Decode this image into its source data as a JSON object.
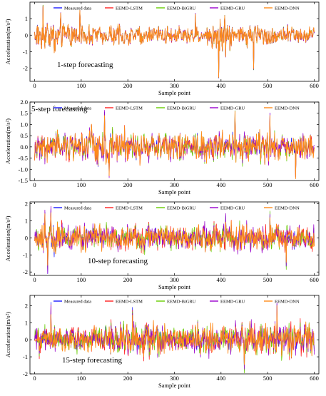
{
  "legend": [
    "Measured data",
    "EEMD-LSTM",
    "EEMD-BiGRU",
    "EEMD-GRU",
    "EEMD-DNN"
  ],
  "colors": {
    "measured": "#1a1aff",
    "lstm": "#ff2020",
    "bigru": "#66cc00",
    "gru": "#9900cc",
    "dnn": "#ff8c1a"
  },
  "chart_data": [
    {
      "type": "line",
      "annotation": "1-step forecasting",
      "xlabel": "Sample point",
      "ylabel": "Acceleration(m/s²)",
      "xlim": [
        -10,
        610
      ],
      "ylim": [
        -2.8,
        2.0
      ],
      "x_ticks": [
        0,
        100,
        200,
        300,
        400,
        500,
        600
      ],
      "y_ticks": [
        -2,
        -1,
        0,
        1
      ],
      "y_tick_labels": [
        "-2",
        "-1",
        "0",
        "1"
      ],
      "legend": "top",
      "series_names": [
        "Measured data",
        "EEMD-LSTM",
        "EEMD-BiGRU",
        "EEMD-GRU",
        "EEMD-DNN"
      ],
      "x_range": [
        0,
        600
      ],
      "amplitude_bands": [
        [
          0,
          100,
          0.95
        ],
        [
          100,
          200,
          0.75
        ],
        [
          200,
          300,
          0.65
        ],
        [
          300,
          380,
          0.6
        ],
        [
          380,
          420,
          1.4
        ],
        [
          420,
          520,
          0.8
        ],
        [
          520,
          600,
          0.6
        ]
      ],
      "notable_points": [
        {
          "x": 18,
          "y": 1.8
        },
        {
          "x": 97,
          "y": 1.5
        },
        {
          "x": 395,
          "y": -2.6
        },
        {
          "x": 470,
          "y": -2.1
        },
        {
          "x": 345,
          "y": 1.3
        }
      ]
    },
    {
      "type": "line",
      "annotation": "5-step forecasting",
      "xlabel": "Sample point",
      "ylabel": "Acceleration(m/s²)",
      "xlim": [
        -10,
        610
      ],
      "ylim": [
        -1.5,
        2.0
      ],
      "x_ticks": [
        0,
        100,
        200,
        300,
        400,
        500,
        600
      ],
      "y_ticks": [
        -1.5,
        -1.0,
        -0.5,
        0.0,
        0.5,
        1.0,
        1.5,
        2.0
      ],
      "y_tick_labels": [
        "-1.5",
        "-1.0",
        "-0.5",
        "0.0",
        "0.5",
        "1.0",
        "1.5",
        "2.0"
      ],
      "legend": "top",
      "series_names": [
        "Measured data",
        "EEMD-LSTM",
        "EEMD-BiGRU",
        "EEMD-GRU",
        "EEMD-DNN"
      ],
      "x_range": [
        0,
        600
      ],
      "amplitude_bands": [
        [
          0,
          100,
          0.75
        ],
        [
          100,
          200,
          0.85
        ],
        [
          200,
          300,
          0.65
        ],
        [
          300,
          420,
          0.7
        ],
        [
          420,
          520,
          0.8
        ],
        [
          520,
          600,
          0.6
        ]
      ],
      "notable_points": [
        {
          "x": 150,
          "y": 1.55
        },
        {
          "x": 430,
          "y": 1.6
        },
        {
          "x": 505,
          "y": 1.5
        },
        {
          "x": 160,
          "y": -1.3
        },
        {
          "x": 560,
          "y": -1.35
        }
      ]
    },
    {
      "type": "line",
      "annotation": "10-step forecasting",
      "xlabel": "Sample point",
      "ylabel": "Acceleration(m/s²)",
      "xlim": [
        -10,
        610
      ],
      "ylim": [
        -2.2,
        2.1
      ],
      "x_ticks": [
        0,
        100,
        200,
        300,
        400,
        500,
        600
      ],
      "y_ticks": [
        -2,
        -1,
        0,
        1,
        2
      ],
      "y_tick_labels": [
        "-2",
        "-1",
        "0",
        "1",
        "2"
      ],
      "legend": "top",
      "series_names": [
        "Measured data",
        "EEMD-LSTM",
        "EEMD-BiGRU",
        "EEMD-GRU",
        "EEMD-DNN"
      ],
      "x_range": [
        0,
        600
      ],
      "amplitude_bands": [
        [
          0,
          60,
          1.1
        ],
        [
          60,
          200,
          0.75
        ],
        [
          200,
          300,
          0.7
        ],
        [
          300,
          420,
          0.8
        ],
        [
          420,
          520,
          0.9
        ],
        [
          520,
          600,
          0.7
        ]
      ],
      "notable_points": [
        {
          "x": 28,
          "y": -2.1
        },
        {
          "x": 35,
          "y": 1.7
        },
        {
          "x": 410,
          "y": 1.3
        },
        {
          "x": 505,
          "y": 1.5
        },
        {
          "x": 540,
          "y": -1.7
        }
      ]
    },
    {
      "type": "line",
      "annotation": "15-step forecasting",
      "xlabel": "Sample point",
      "ylabel": "Acceleration(m/s²)",
      "xlim": [
        -10,
        610
      ],
      "ylim": [
        -2.0,
        2.6
      ],
      "x_ticks": [
        0,
        100,
        200,
        300,
        400,
        500,
        600
      ],
      "y_ticks": [
        -2,
        -1,
        0,
        1,
        2
      ],
      "y_tick_labels": [
        "-2",
        "-1",
        "0",
        "1",
        "2"
      ],
      "legend": "top",
      "series_names": [
        "Measured data",
        "EEMD-LSTM",
        "EEMD-BiGRU",
        "EEMD-GRU",
        "EEMD-DNN"
      ],
      "x_range": [
        0,
        600
      ],
      "amplitude_bands": [
        [
          0,
          150,
          0.6
        ],
        [
          150,
          280,
          1.1
        ],
        [
          280,
          340,
          0.45
        ],
        [
          340,
          440,
          0.9
        ],
        [
          440,
          600,
          1.0
        ]
      ],
      "notable_points": [
        {
          "x": 35,
          "y": 2.2
        },
        {
          "x": 210,
          "y": 1.9
        },
        {
          "x": 520,
          "y": 2.1
        },
        {
          "x": 450,
          "y": -1.8
        },
        {
          "x": 10,
          "y": -0.9
        }
      ]
    }
  ]
}
